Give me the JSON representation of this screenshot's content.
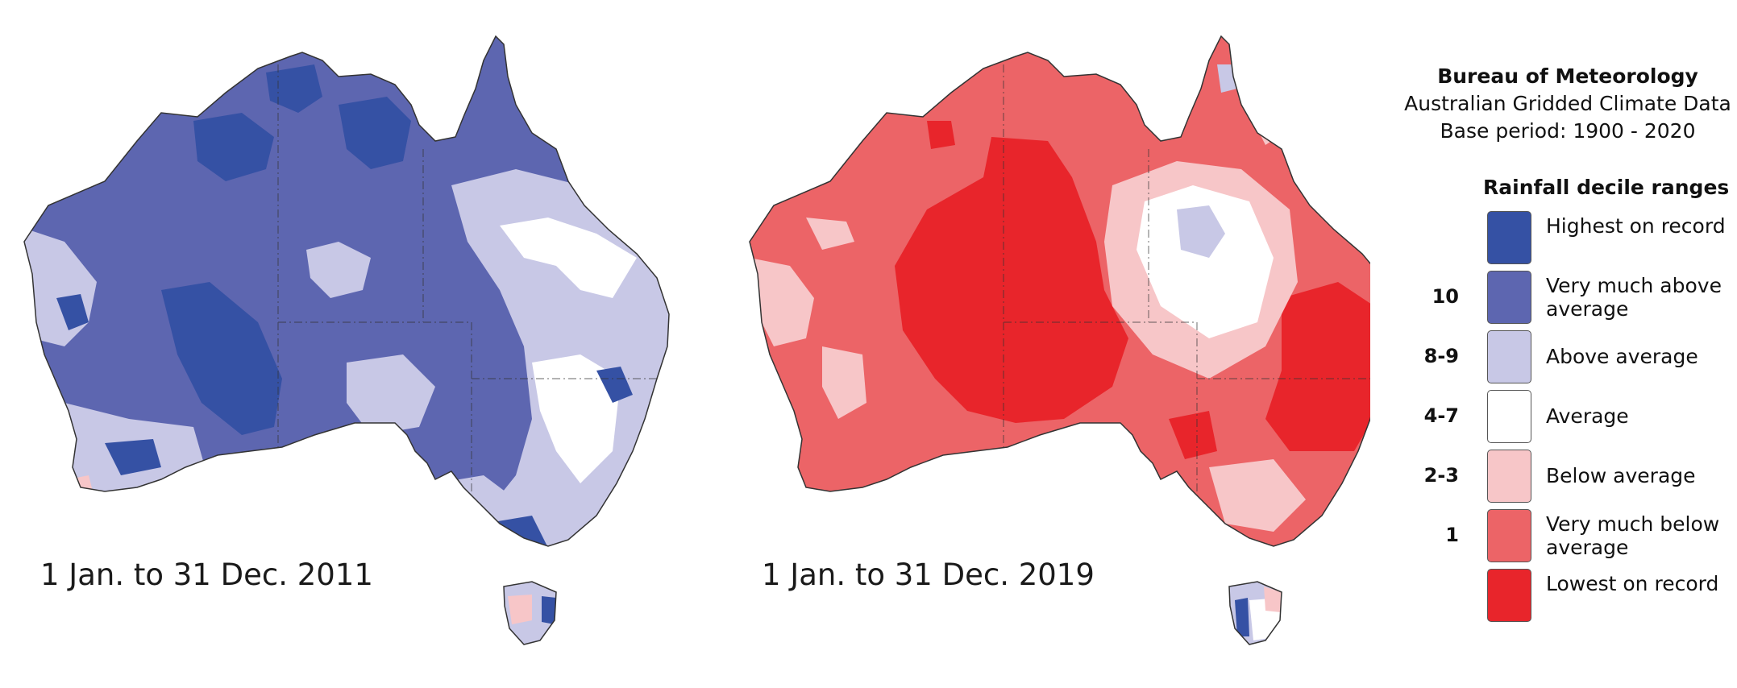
{
  "source": {
    "agency": "Bureau of Meteorology",
    "dataset": "Australian Gridded Climate Data",
    "base_period": "Base period: 1900 - 2020"
  },
  "legend": {
    "title": "Rainfall decile ranges",
    "items": [
      {
        "number": "",
        "label": "Highest on record",
        "color": "#3551a4"
      },
      {
        "number": "10",
        "label": "Very much above average",
        "color": "#5d66b0"
      },
      {
        "number": "8-9",
        "label": "Above average",
        "color": "#c8c8e6"
      },
      {
        "number": "4-7",
        "label": "Average",
        "color": "#ffffff"
      },
      {
        "number": "2-3",
        "label": "Below average",
        "color": "#f7c6c8"
      },
      {
        "number": "1",
        "label": "Very much below average",
        "color": "#ec6467"
      },
      {
        "number": "",
        "label": "Lowest on record",
        "color": "#e8252b"
      }
    ]
  },
  "maps": [
    {
      "caption": "1 Jan. to 31 Dec. 2011",
      "dominant": "wet"
    },
    {
      "caption": "1 Jan. to 31 Dec. 2019",
      "dominant": "dry"
    }
  ]
}
